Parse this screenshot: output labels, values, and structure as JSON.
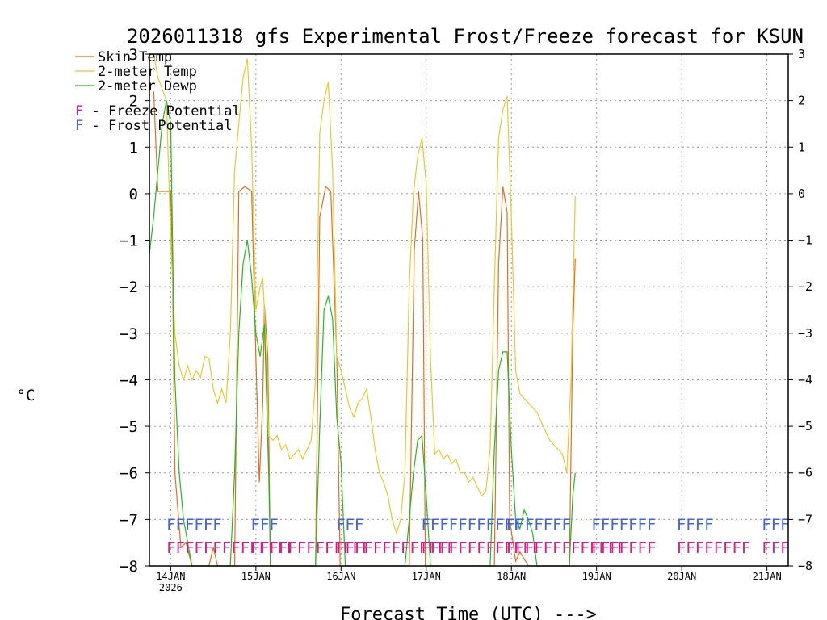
{
  "chart_data": {
    "type": "line",
    "title": "2026011318 gfs Experimental Frost/Freeze forecast for KSUN",
    "xlabel": "Forecast Time (UTC) --->",
    "ylabel": "°C",
    "ylim": [
      -8,
      3
    ],
    "xlim": [
      -0.25,
      7.25
    ],
    "y_ticks": [
      -8,
      -7,
      -6,
      -5,
      -4,
      -3,
      -2,
      -1,
      0,
      1,
      2,
      3
    ],
    "x_ticks": [
      {
        "x": 0,
        "label": "14JAN",
        "sublabel": "2026"
      },
      {
        "x": 1,
        "label": "15JAN"
      },
      {
        "x": 2,
        "label": "16JAN"
      },
      {
        "x": 3,
        "label": "17JAN"
      },
      {
        "x": 4,
        "label": "18JAN"
      },
      {
        "x": 5,
        "label": "19JAN"
      },
      {
        "x": 6,
        "label": "20JAN"
      },
      {
        "x": 7,
        "label": "21JAN"
      }
    ],
    "grid": true,
    "series": [
      {
        "name": "Skin Temp",
        "color": "#e07020",
        "points": [
          [
            -0.2,
            2.2
          ],
          [
            -0.15,
            0.05
          ],
          [
            0.0,
            0.05
          ],
          [
            0.02,
            -1.5
          ],
          [
            0.05,
            -6.0
          ],
          [
            0.12,
            -7.6
          ],
          [
            0.18,
            -7.5
          ],
          [
            0.25,
            -8.0
          ],
          [
            0.45,
            -8.0
          ],
          [
            0.5,
            -7.6
          ],
          [
            0.55,
            -8.0
          ],
          [
            0.75,
            -8.0
          ],
          [
            0.8,
            0.05
          ],
          [
            0.87,
            0.15
          ],
          [
            0.95,
            0.05
          ],
          [
            1.0,
            -3.5
          ],
          [
            1.04,
            -6.2
          ],
          [
            1.08,
            -4.5
          ],
          [
            1.1,
            -2.4
          ],
          [
            1.14,
            -3.5
          ],
          [
            1.17,
            -8.0
          ],
          [
            1.7,
            -8.0
          ],
          [
            1.75,
            -0.5
          ],
          [
            1.82,
            0.15
          ],
          [
            1.88,
            0.05
          ],
          [
            1.95,
            -3.5
          ],
          [
            1.99,
            -8.0
          ],
          [
            2.8,
            -8.0
          ],
          [
            2.86,
            -1.2
          ],
          [
            2.91,
            0.05
          ],
          [
            2.96,
            -1.0
          ],
          [
            2.99,
            -8.0
          ],
          [
            3.8,
            -8.0
          ],
          [
            3.85,
            -1.5
          ],
          [
            3.9,
            0.15
          ],
          [
            3.95,
            -0.4
          ],
          [
            3.98,
            -7.0
          ],
          [
            4.05,
            -7.9
          ],
          [
            4.1,
            -7.7
          ],
          [
            4.2,
            -8.0
          ],
          [
            4.68,
            -8.0
          ],
          [
            4.72,
            -3.0
          ],
          [
            4.75,
            -1.4
          ]
        ]
      },
      {
        "name": "2-meter Temp",
        "color": "#e8c830",
        "points": [
          [
            -0.2,
            3.0
          ],
          [
            -0.15,
            2.5
          ],
          [
            -0.05,
            2.0
          ],
          [
            0.0,
            -1.0
          ],
          [
            0.05,
            -3.0
          ],
          [
            0.1,
            -3.7
          ],
          [
            0.15,
            -4.0
          ],
          [
            0.2,
            -3.7
          ],
          [
            0.25,
            -4.0
          ],
          [
            0.3,
            -3.8
          ],
          [
            0.35,
            -3.95
          ],
          [
            0.4,
            -3.5
          ],
          [
            0.45,
            -3.55
          ],
          [
            0.5,
            -4.2
          ],
          [
            0.55,
            -4.5
          ],
          [
            0.6,
            -4.2
          ],
          [
            0.65,
            -4.5
          ],
          [
            0.7,
            -3.0
          ],
          [
            0.75,
            0.5
          ],
          [
            0.8,
            1.5
          ],
          [
            0.85,
            2.5
          ],
          [
            0.9,
            2.9
          ],
          [
            0.95,
            1.0
          ],
          [
            1.0,
            -2.5
          ],
          [
            1.05,
            -2.0
          ],
          [
            1.08,
            -1.8
          ],
          [
            1.1,
            -2.5
          ],
          [
            1.15,
            -5.2
          ],
          [
            1.2,
            -5.3
          ],
          [
            1.25,
            -5.2
          ],
          [
            1.3,
            -5.5
          ],
          [
            1.35,
            -5.4
          ],
          [
            1.4,
            -5.7
          ],
          [
            1.45,
            -5.6
          ],
          [
            1.5,
            -5.5
          ],
          [
            1.55,
            -5.7
          ],
          [
            1.6,
            -5.5
          ],
          [
            1.65,
            -5.3
          ],
          [
            1.7,
            -4.0
          ],
          [
            1.75,
            1.3
          ],
          [
            1.8,
            2.0
          ],
          [
            1.85,
            2.4
          ],
          [
            1.9,
            0.5
          ],
          [
            1.95,
            -3.5
          ],
          [
            2.0,
            -3.8
          ],
          [
            2.05,
            -4.2
          ],
          [
            2.1,
            -4.6
          ],
          [
            2.15,
            -4.8
          ],
          [
            2.2,
            -4.5
          ],
          [
            2.25,
            -4.4
          ],
          [
            2.3,
            -4.2
          ],
          [
            2.35,
            -4.8
          ],
          [
            2.4,
            -5.5
          ],
          [
            2.45,
            -6.0
          ],
          [
            2.5,
            -6.2
          ],
          [
            2.55,
            -6.5
          ],
          [
            2.6,
            -7.0
          ],
          [
            2.65,
            -7.3
          ],
          [
            2.7,
            -7.0
          ],
          [
            2.75,
            -6.0
          ],
          [
            2.8,
            -2.0
          ],
          [
            2.85,
            0.0
          ],
          [
            2.9,
            0.8
          ],
          [
            2.95,
            1.2
          ],
          [
            3.0,
            0.2
          ],
          [
            3.05,
            -3.5
          ],
          [
            3.1,
            -5.6
          ],
          [
            3.15,
            -5.5
          ],
          [
            3.2,
            -5.7
          ],
          [
            3.25,
            -5.6
          ],
          [
            3.3,
            -5.8
          ],
          [
            3.35,
            -5.7
          ],
          [
            3.4,
            -6.0
          ],
          [
            3.45,
            -6.0
          ],
          [
            3.5,
            -6.2
          ],
          [
            3.55,
            -6.1
          ],
          [
            3.6,
            -6.3
          ],
          [
            3.65,
            -6.5
          ],
          [
            3.7,
            -6.4
          ],
          [
            3.75,
            -5.5
          ],
          [
            3.8,
            -2.0
          ],
          [
            3.85,
            1.2
          ],
          [
            3.9,
            1.8
          ],
          [
            3.95,
            2.1
          ],
          [
            4.0,
            -0.5
          ],
          [
            4.05,
            -3.8
          ],
          [
            4.1,
            -4.3
          ],
          [
            4.15,
            -4.4
          ],
          [
            4.2,
            -4.5
          ],
          [
            4.25,
            -4.6
          ],
          [
            4.3,
            -4.7
          ],
          [
            4.35,
            -4.9
          ],
          [
            4.4,
            -5.1
          ],
          [
            4.45,
            -5.3
          ],
          [
            4.5,
            -5.4
          ],
          [
            4.55,
            -5.5
          ],
          [
            4.6,
            -5.6
          ],
          [
            4.65,
            -6.0
          ],
          [
            4.7,
            -4.0
          ],
          [
            4.75,
            -0.05
          ]
        ]
      },
      {
        "name": "2-meter Dewp",
        "color": "#22bb22",
        "points": [
          [
            -0.25,
            -1.3
          ],
          [
            -0.2,
            -0.5
          ],
          [
            -0.15,
            0.5
          ],
          [
            -0.1,
            1.5
          ],
          [
            -0.05,
            2.0
          ],
          [
            0.0,
            1.5
          ],
          [
            0.03,
            -2.0
          ],
          [
            0.05,
            -4.0
          ],
          [
            0.1,
            -6.0
          ],
          [
            0.15,
            -7.0
          ],
          [
            0.2,
            -7.5
          ],
          [
            0.25,
            -8.0
          ],
          [
            0.7,
            -8.0
          ],
          [
            0.75,
            -6.0
          ],
          [
            0.8,
            -3.0
          ],
          [
            0.85,
            -1.5
          ],
          [
            0.9,
            -1.0
          ],
          [
            0.95,
            -1.8
          ],
          [
            1.0,
            -3.0
          ],
          [
            1.05,
            -3.5
          ],
          [
            1.1,
            -2.8
          ],
          [
            1.15,
            -6.0
          ],
          [
            1.17,
            -8.0
          ],
          [
            1.7,
            -8.0
          ],
          [
            1.75,
            -5.0
          ],
          [
            1.8,
            -2.5
          ],
          [
            1.85,
            -2.2
          ],
          [
            1.9,
            -2.7
          ],
          [
            1.95,
            -4.8
          ],
          [
            2.0,
            -5.8
          ],
          [
            2.05,
            -8.0
          ],
          [
            2.75,
            -8.0
          ],
          [
            2.8,
            -7.0
          ],
          [
            2.85,
            -6.0
          ],
          [
            2.9,
            -5.3
          ],
          [
            2.95,
            -5.2
          ],
          [
            3.0,
            -6.5
          ],
          [
            3.05,
            -8.0
          ],
          [
            3.75,
            -8.0
          ],
          [
            3.8,
            -5.5
          ],
          [
            3.85,
            -3.8
          ],
          [
            3.9,
            -3.4
          ],
          [
            3.95,
            -3.4
          ],
          [
            4.0,
            -5.5
          ],
          [
            4.05,
            -7.0
          ],
          [
            4.1,
            -7.2
          ],
          [
            4.15,
            -6.8
          ],
          [
            4.2,
            -7.0
          ],
          [
            4.25,
            -7.3
          ],
          [
            4.3,
            -8.0
          ],
          [
            4.68,
            -8.0
          ],
          [
            4.72,
            -6.5
          ],
          [
            4.75,
            -6.0
          ]
        ]
      }
    ],
    "legend": [
      {
        "label": "Skin Temp",
        "color": "#e07020"
      },
      {
        "label": "2-meter Temp",
        "color": "#e8c830"
      },
      {
        "label": "2-meter Dewp",
        "color": "#22bb22"
      }
    ],
    "potential_legend": [
      {
        "letter": "F",
        "text": " - Freeze Potential",
        "color": "#cc2288"
      },
      {
        "letter": "F",
        "text": " - Frost Potential",
        "color": "#4466cc"
      }
    ],
    "frost_potential": {
      "color": "#4466cc",
      "y": -7.1,
      "runs": [
        {
          "label": "FFFFFF",
          "x_start": -0.05
        },
        {
          "label": "FFF",
          "x_start": 0.94
        },
        {
          "label": "FFF",
          "x_start": 1.94
        },
        {
          "label": "FFFFFFFFFFF",
          "x_start": 2.94
        },
        {
          "label": "FFFFFFF",
          "x_start": 3.94
        },
        {
          "label": "FFFFFFF",
          "x_start": 4.94
        },
        {
          "label": "FFFF",
          "x_start": 5.94
        },
        {
          "label": "FFF",
          "x_start": 6.94
        }
      ]
    },
    "freeze_potential": {
      "color": "#cc2288",
      "y": -7.6,
      "runs": [
        {
          "label": "FFFFFFFFFFFFFF",
          "x_start": -0.05
        },
        {
          "label": "FFFFFFFFFFFFF",
          "x_start": 0.94
        },
        {
          "label": "FFFFFFFFFFFFF",
          "x_start": 1.94
        },
        {
          "label": "FFFFFFFFFFFFF",
          "x_start": 2.94
        },
        {
          "label": "FFFFFFFFFFFFF",
          "x_start": 3.94
        },
        {
          "label": "FFFFFFF",
          "x_start": 4.94
        },
        {
          "label": "FFFFFFFF",
          "x_start": 5.94
        },
        {
          "label": "FFF",
          "x_start": 6.94
        }
      ]
    }
  }
}
